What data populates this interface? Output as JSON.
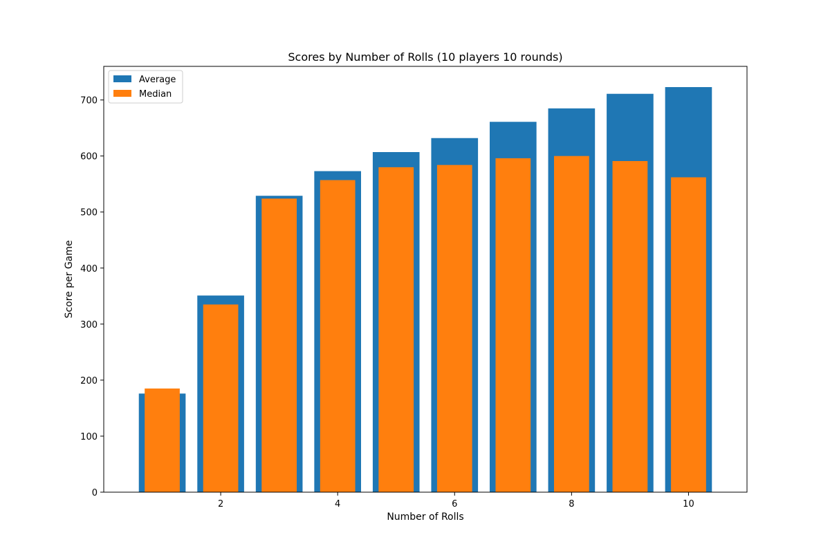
{
  "chart_data": {
    "type": "bar",
    "title": "Scores by Number of Rolls  (10 players 10 rounds)",
    "xlabel": "Number of Rolls",
    "ylabel": "Score per Game",
    "x": [
      1,
      2,
      3,
      4,
      5,
      6,
      7,
      8,
      9,
      10
    ],
    "xlim": [
      0,
      11
    ],
    "xticks": [
      2,
      4,
      6,
      8,
      10
    ],
    "ylim": [
      0,
      760
    ],
    "yticks": [
      0,
      100,
      200,
      300,
      400,
      500,
      600,
      700
    ],
    "grid": false,
    "legend_position": "top-left",
    "series": [
      {
        "name": "Average",
        "color": "#1f77b4",
        "values": [
          176,
          351,
          529,
          573,
          607,
          632,
          661,
          685,
          711,
          723
        ]
      },
      {
        "name": "Median",
        "color": "#ff7f0e",
        "values": [
          185,
          335,
          524,
          557,
          580,
          584,
          596,
          600,
          591,
          562
        ]
      }
    ]
  }
}
